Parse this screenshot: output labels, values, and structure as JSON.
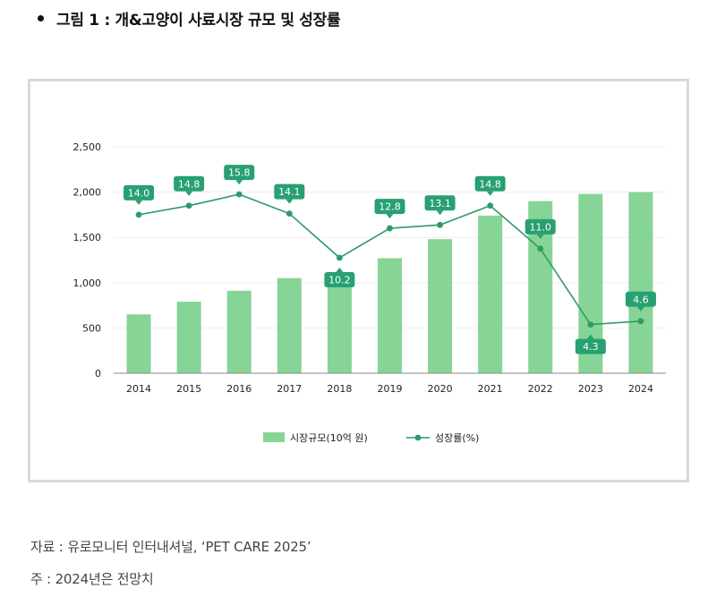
{
  "heading": {
    "text": "그림 1 : 개&고양이 사료시장 규모 및 성장률"
  },
  "chart_data": {
    "type": "bar+line",
    "title": "",
    "categories": [
      "2014",
      "2015",
      "2016",
      "2017",
      "2018",
      "2019",
      "2020",
      "2021",
      "2022",
      "2023",
      "2024"
    ],
    "series": [
      {
        "name": "시장규모(10억 원)",
        "type": "bar",
        "axis": "left",
        "values": [
          650,
          790,
          910,
          1050,
          1080,
          1270,
          1480,
          1740,
          1900,
          1980,
          2000
        ]
      },
      {
        "name": "성장률(%)",
        "type": "line",
        "axis": "right",
        "values": [
          14.0,
          14.8,
          15.8,
          14.1,
          10.2,
          12.8,
          13.1,
          14.8,
          11.0,
          4.3,
          4.6
        ],
        "labels": [
          "14.0",
          "14.8",
          "15.8",
          "14.1",
          "10.2",
          "12.8",
          "13.1",
          "14.8",
          "11.0",
          "4.3",
          "4.6"
        ],
        "label_positions": [
          "above",
          "above",
          "above",
          "above",
          "below",
          "above",
          "above",
          "above",
          "above",
          "below",
          "above"
        ]
      }
    ],
    "y_left": {
      "ticks": [
        0,
        500,
        1000,
        1500,
        2000,
        2500
      ],
      "tick_labels": [
        "0",
        "500",
        "1,000",
        "1,500",
        "2,000",
        "2,500"
      ],
      "range": [
        0,
        2500
      ]
    },
    "y_right": {
      "range": [
        0,
        20
      ],
      "visible": false
    },
    "grid": true,
    "legend": {
      "position": "bottom-center",
      "items": [
        "시장규모(10억 원)",
        "성장률(%)"
      ]
    },
    "colors": {
      "bar": "#86d496",
      "line": "#2d9a68",
      "label_bg": "#27a072",
      "label_text": "#ffffff",
      "grid": "#eeeeee",
      "axis": "#8a8a8a"
    }
  },
  "footnotes": {
    "source": "자료 : 유로모니터 인터내셔널, ‘PET CARE 2025’",
    "note": "주 : 2024년은 전망치"
  }
}
